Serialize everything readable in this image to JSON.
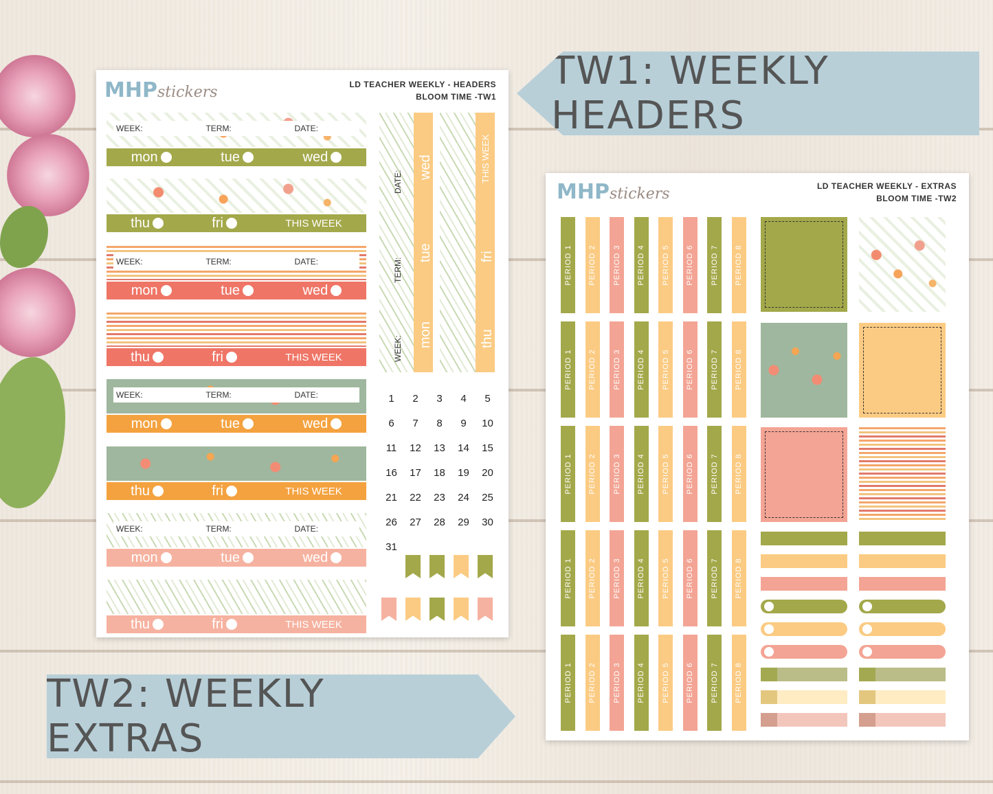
{
  "banners": {
    "tw1": "TW1: WEEKLY HEADERS",
    "tw2": "TW2: WEEKLY EXTRAS"
  },
  "sheet1": {
    "logo_main": "MHP",
    "logo_script": "stickers",
    "title_line1": "LD TEACHER WEEKLY - HEADERS",
    "title_line2": "BLOOM TIME -TW1",
    "week_label": "WEEK:",
    "term_label": "TERM:",
    "date_label": "DATE:",
    "days_top": [
      "mon",
      "tue",
      "wed"
    ],
    "days_bottom": [
      "thu",
      "fri"
    ],
    "this_week": "THIS WEEK",
    "vertical": {
      "date": "DATE:",
      "term": "TERM:",
      "week": "WEEK:",
      "wed": "wed",
      "tue": "tue",
      "mon": "mon",
      "this_week": "THIS WEEK",
      "fri": "fri",
      "thu": "thu"
    },
    "calendar": [
      "1",
      "2",
      "3",
      "4",
      "5",
      "6",
      "7",
      "8",
      "9",
      "10",
      "11",
      "12",
      "13",
      "14",
      "15",
      "16",
      "17",
      "18",
      "19",
      "20",
      "21",
      "22",
      "23",
      "24",
      "25",
      "26",
      "27",
      "28",
      "29",
      "30",
      "31"
    ]
  },
  "sheet2": {
    "logo_main": "MHP",
    "logo_script": "stickers",
    "title_line1": "LD TEACHER WEEKLY - EXTRAS",
    "title_line2": "BLOOM TIME -TW2",
    "periods": [
      "PERIOD 1",
      "PERIOD 2",
      "PERIOD 3",
      "PERIOD 4",
      "PERIOD 5",
      "PERIOD 6",
      "PERIOD 7",
      "PERIOD 8"
    ]
  },
  "colors": {
    "olive": "#a3a84a",
    "peach": "#fbcb83",
    "salmon": "#f3a494",
    "coral": "#ef7566",
    "orange": "#f4a23f",
    "pink": "#f6b2a0",
    "banner": "#b8cfd8"
  }
}
